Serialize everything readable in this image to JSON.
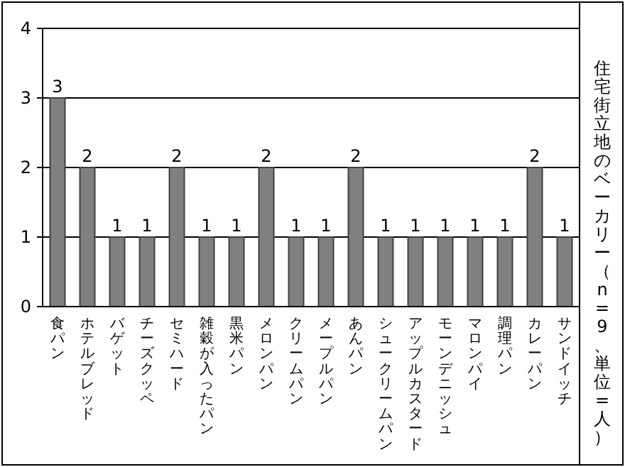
{
  "chart_data": {
    "type": "bar",
    "title": "住宅街立地のベーカリー（n=9、単位=人）",
    "categories": [
      "食パン",
      "ホテルブレッド",
      "バゲット",
      "チーズクッペ",
      "セミハード",
      "雑穀が入ったパン",
      "黒米パン",
      "メロンパン",
      "クリームパン",
      "メープルパン",
      "あんパン",
      "シュークリームパン",
      "アップルカスタード",
      "モーンデニッシュ",
      "マロンパイ",
      "調理パン",
      "カレーパン",
      "サンドイッチ"
    ],
    "values": [
      3,
      2,
      1,
      1,
      2,
      1,
      1,
      2,
      1,
      1,
      2,
      1,
      1,
      1,
      1,
      1,
      2,
      1
    ],
    "color": "#808080",
    "ylim": [
      0,
      4
    ],
    "yticks": [
      0,
      1,
      2,
      3,
      4
    ],
    "grid": "y",
    "data_labels": true
  }
}
